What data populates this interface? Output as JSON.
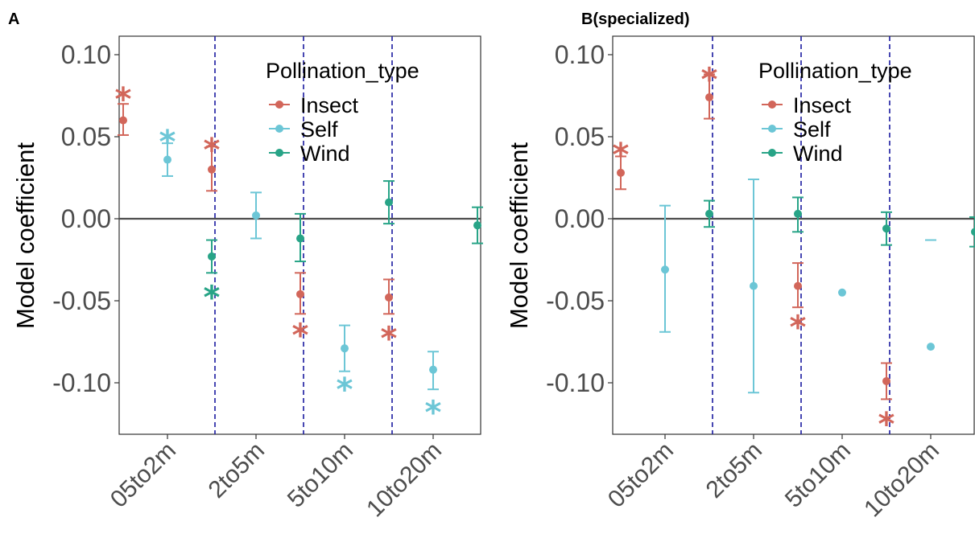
{
  "chart_data": [
    {
      "type": "errorbar",
      "title": "A",
      "ylabel": "Model coefficient",
      "xlabel": "",
      "ylim": [
        -0.13,
        0.11
      ],
      "yticks": [
        0.1,
        0.05,
        0.0,
        -0.05,
        -0.1
      ],
      "ytick_labels": [
        "0.10",
        "0.05",
        "0.00",
        "-0.05",
        "-0.10"
      ],
      "categories": [
        "05to2m",
        "2to5m",
        "5to10m",
        "10to20m"
      ],
      "zero_line": true,
      "grid": false,
      "legend": {
        "title": "Pollination_type",
        "placement": "top-right",
        "entries": [
          "Insect",
          "Self",
          "Wind"
        ]
      },
      "series": [
        {
          "name": "Insect",
          "color": "#d2665a",
          "points": [
            {
              "y": 0.06,
              "lo": 0.051,
              "hi": 0.07,
              "sig": true,
              "star_y": 0.079
            },
            {
              "y": 0.03,
              "lo": 0.017,
              "hi": 0.044,
              "sig": true,
              "star_y": 0.048
            },
            {
              "y": -0.046,
              "lo": -0.058,
              "hi": -0.033,
              "sig": true,
              "star_y": -0.065
            },
            {
              "y": -0.048,
              "lo": -0.058,
              "hi": -0.037,
              "sig": true,
              "star_y": -0.067
            }
          ]
        },
        {
          "name": "Self",
          "color": "#6cc6d6",
          "points": [
            {
              "y": 0.036,
              "lo": 0.026,
              "hi": 0.046,
              "sig": true,
              "star_y": 0.053
            },
            {
              "y": 0.002,
              "lo": -0.012,
              "hi": 0.016,
              "sig": false
            },
            {
              "y": -0.079,
              "lo": -0.093,
              "hi": -0.065,
              "sig": true,
              "star_y": -0.098
            },
            {
              "y": -0.092,
              "lo": -0.104,
              "hi": -0.081,
              "sig": true,
              "star_y": -0.112
            }
          ]
        },
        {
          "name": "Wind",
          "color": "#28a487",
          "points": [
            {
              "y": -0.023,
              "lo": -0.033,
              "hi": -0.013,
              "sig": true,
              "star_y": -0.042
            },
            {
              "y": -0.012,
              "lo": -0.026,
              "hi": 0.003,
              "sig": false
            },
            {
              "y": 0.01,
              "lo": -0.003,
              "hi": 0.023,
              "sig": false
            },
            {
              "y": -0.004,
              "lo": -0.015,
              "hi": 0.007,
              "sig": false
            }
          ]
        }
      ]
    },
    {
      "type": "errorbar",
      "title": "B(specialized)",
      "ylabel": "Model coefficient",
      "xlabel": "",
      "ylim": [
        -0.13,
        0.11
      ],
      "yticks": [
        0.1,
        0.05,
        0.0,
        -0.05,
        -0.1
      ],
      "ytick_labels": [
        "0.10",
        "0.05",
        "0.00",
        "-0.05",
        "-0.10"
      ],
      "categories": [
        "05to2m",
        "2to5m",
        "5to10m",
        "10to20m"
      ],
      "zero_line": true,
      "grid": false,
      "legend": {
        "title": "Pollination_type",
        "placement": "top-right",
        "entries": [
          "Insect",
          "Self",
          "Wind"
        ]
      },
      "series": [
        {
          "name": "Insect",
          "color": "#d2665a",
          "points": [
            {
              "y": 0.028,
              "lo": 0.018,
              "hi": 0.038,
              "sig": true,
              "star_y": 0.045
            },
            {
              "y": 0.074,
              "lo": 0.061,
              "hi": 0.088,
              "sig": true,
              "star_y": 0.091
            },
            {
              "y": -0.041,
              "lo": -0.054,
              "hi": -0.027,
              "sig": true,
              "star_y": -0.06
            },
            {
              "y": -0.099,
              "lo": -0.11,
              "hi": -0.088,
              "sig": true,
              "star_y": -0.119
            }
          ]
        },
        {
          "name": "Self",
          "color": "#6cc6d6",
          "points": [
            {
              "y": -0.031,
              "lo": -0.069,
              "hi": 0.008,
              "sig": false
            },
            {
              "y": -0.041,
              "lo": -0.106,
              "hi": 0.024,
              "sig": false
            },
            {
              "y": -0.045,
              "lo": null,
              "hi": null,
              "sig": false
            },
            {
              "y": -0.078,
              "lo": null,
              "hi": null,
              "sig": false,
              "stray_dash_y": -0.013
            }
          ]
        },
        {
          "name": "Wind",
          "color": "#28a487",
          "points": [
            {
              "y": 0.003,
              "lo": -0.005,
              "hi": 0.011,
              "sig": false
            },
            {
              "y": 0.003,
              "lo": -0.008,
              "hi": 0.013,
              "sig": false
            },
            {
              "y": -0.006,
              "lo": -0.016,
              "hi": 0.004,
              "sig": false
            },
            {
              "y": -0.008,
              "lo": -0.017,
              "hi": 0.001,
              "sig": false
            }
          ]
        }
      ]
    }
  ]
}
